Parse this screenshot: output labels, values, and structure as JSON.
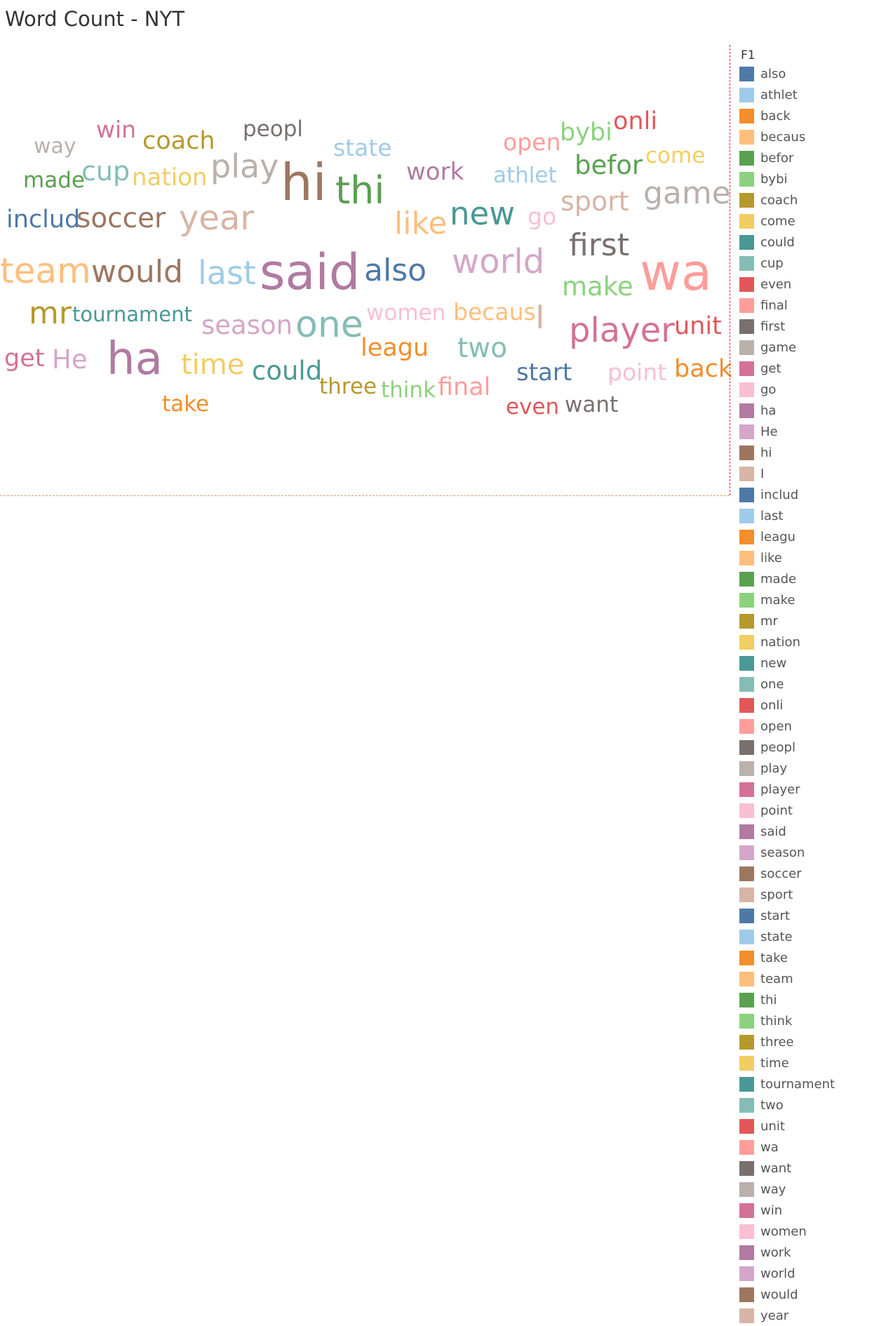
{
  "title": "Word Count - NYT",
  "legend": {
    "title": "F1"
  },
  "chart_data": {
    "type": "word-cloud",
    "title": "Word Count - NYT",
    "legend_title": "F1",
    "words": [
      {
        "text": "also",
        "color": "#4e79a7"
      },
      {
        "text": "athlet",
        "color": "#a0cbe8"
      },
      {
        "text": "back",
        "color": "#f28e2b"
      },
      {
        "text": "becaus",
        "color": "#ffbe7d"
      },
      {
        "text": "befor",
        "color": "#59a14f"
      },
      {
        "text": "bybi",
        "color": "#8cd17d"
      },
      {
        "text": "coach",
        "color": "#b6992d"
      },
      {
        "text": "come",
        "color": "#f1ce63"
      },
      {
        "text": "could",
        "color": "#499894"
      },
      {
        "text": "cup",
        "color": "#86bcb6"
      },
      {
        "text": "even",
        "color": "#e15759"
      },
      {
        "text": "final",
        "color": "#ff9d9a"
      },
      {
        "text": "first",
        "color": "#79706e"
      },
      {
        "text": "game",
        "color": "#bab0ac"
      },
      {
        "text": "get",
        "color": "#d37295"
      },
      {
        "text": "go",
        "color": "#fabfd2"
      },
      {
        "text": "ha",
        "color": "#b07aa1"
      },
      {
        "text": "He",
        "color": "#d4a6c8"
      },
      {
        "text": "hi",
        "color": "#9d7660"
      },
      {
        "text": "I",
        "color": "#d7b5a6"
      },
      {
        "text": "includ",
        "color": "#4e79a7"
      },
      {
        "text": "last",
        "color": "#a0cbe8"
      },
      {
        "text": "leagu",
        "color": "#f28e2b"
      },
      {
        "text": "like",
        "color": "#ffbe7d"
      },
      {
        "text": "made",
        "color": "#59a14f"
      },
      {
        "text": "make",
        "color": "#8cd17d"
      },
      {
        "text": "mr",
        "color": "#b6992d"
      },
      {
        "text": "nation",
        "color": "#f1ce63"
      },
      {
        "text": "new",
        "color": "#499894"
      },
      {
        "text": "one",
        "color": "#86bcb6"
      },
      {
        "text": "onli",
        "color": "#e15759"
      },
      {
        "text": "open",
        "color": "#ff9d9a"
      },
      {
        "text": "peopl",
        "color": "#79706e"
      },
      {
        "text": "play",
        "color": "#bab0ac"
      },
      {
        "text": "player",
        "color": "#d37295"
      },
      {
        "text": "point",
        "color": "#fabfd2"
      },
      {
        "text": "said",
        "color": "#b07aa1"
      },
      {
        "text": "season",
        "color": "#d4a6c8"
      },
      {
        "text": "soccer",
        "color": "#9d7660"
      },
      {
        "text": "sport",
        "color": "#d7b5a6"
      },
      {
        "text": "start",
        "color": "#4e79a7"
      },
      {
        "text": "state",
        "color": "#a0cbe8"
      },
      {
        "text": "take",
        "color": "#f28e2b"
      },
      {
        "text": "team",
        "color": "#ffbe7d"
      },
      {
        "text": "thi",
        "color": "#59a14f"
      },
      {
        "text": "think",
        "color": "#8cd17d"
      },
      {
        "text": "three",
        "color": "#b6992d"
      },
      {
        "text": "time",
        "color": "#f1ce63"
      },
      {
        "text": "tournament",
        "color": "#499894"
      },
      {
        "text": "two",
        "color": "#86bcb6"
      },
      {
        "text": "unit",
        "color": "#e15759"
      },
      {
        "text": "wa",
        "color": "#ff9d9a"
      },
      {
        "text": "want",
        "color": "#79706e"
      },
      {
        "text": "way",
        "color": "#bab0ac"
      },
      {
        "text": "win",
        "color": "#d37295"
      },
      {
        "text": "women",
        "color": "#fabfd2"
      },
      {
        "text": "work",
        "color": "#b07aa1"
      },
      {
        "text": "world",
        "color": "#d4a6c8"
      },
      {
        "text": "would",
        "color": "#9d7660"
      },
      {
        "text": "year",
        "color": "#d7b5a6"
      }
    ]
  }
}
